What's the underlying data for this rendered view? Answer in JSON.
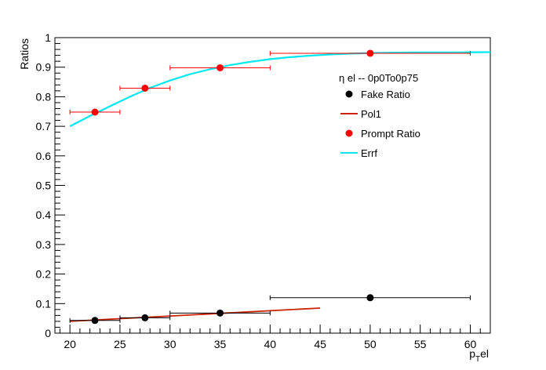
{
  "chart_data": {
    "type": "scatter",
    "title": "",
    "xlabel": "el",
    "xlabel_prefix": "p",
    "xlabel_sub": "T",
    "ylabel": "Ratios",
    "xlim": [
      18.5,
      62
    ],
    "ylim": [
      0,
      1
    ],
    "x_ticks": [
      "20",
      "25",
      "30",
      "35",
      "40",
      "45",
      "50",
      "55",
      "60"
    ],
    "y_ticks": [
      "0",
      "0.1",
      "0.2",
      "0.3",
      "0.4",
      "0.5",
      "0.6",
      "0.7",
      "0.8",
      "0.9",
      "1"
    ],
    "legend": {
      "header": "η el -- 0p0To0p75",
      "position": "top-right",
      "entries": [
        "Fake Ratio",
        "Pol1",
        "Prompt Ratio",
        "Errf"
      ]
    },
    "series": [
      {
        "name": "Fake Ratio",
        "kind": "points",
        "color": "#000000",
        "points": [
          {
            "x": 22.5,
            "y": 0.043,
            "xlo": 20,
            "xhi": 25
          },
          {
            "x": 27.5,
            "y": 0.052,
            "xlo": 25,
            "xhi": 30
          },
          {
            "x": 35,
            "y": 0.068,
            "xlo": 30,
            "xhi": 40
          },
          {
            "x": 50,
            "y": 0.12,
            "xlo": 40,
            "xhi": 60
          }
        ]
      },
      {
        "name": "Pol1",
        "kind": "line",
        "color": "#cc2200",
        "points": [
          [
            20,
            0.04
          ],
          [
            45,
            0.085
          ]
        ]
      },
      {
        "name": "Prompt Ratio",
        "kind": "points",
        "color": "#ff0000",
        "points": [
          {
            "x": 22.5,
            "y": 0.748,
            "xlo": 20,
            "xhi": 25
          },
          {
            "x": 27.5,
            "y": 0.829,
            "xlo": 25,
            "xhi": 30
          },
          {
            "x": 35,
            "y": 0.898,
            "xlo": 30,
            "xhi": 40
          },
          {
            "x": 50,
            "y": 0.947,
            "xlo": 40,
            "xhi": 60
          }
        ]
      },
      {
        "name": "Errf",
        "kind": "line",
        "color": "#00e8f0",
        "points": [
          [
            20,
            0.7
          ],
          [
            22,
            0.735
          ],
          [
            24,
            0.768
          ],
          [
            26,
            0.8
          ],
          [
            28,
            0.83
          ],
          [
            30,
            0.855
          ],
          [
            32,
            0.876
          ],
          [
            34,
            0.893
          ],
          [
            36,
            0.907
          ],
          [
            38,
            0.918
          ],
          [
            40,
            0.927
          ],
          [
            42,
            0.934
          ],
          [
            44,
            0.939
          ],
          [
            46,
            0.943
          ],
          [
            48,
            0.946
          ],
          [
            50,
            0.948
          ],
          [
            52,
            0.949
          ],
          [
            55,
            0.95
          ],
          [
            58,
            0.95
          ],
          [
            62,
            0.951
          ]
        ]
      }
    ]
  }
}
